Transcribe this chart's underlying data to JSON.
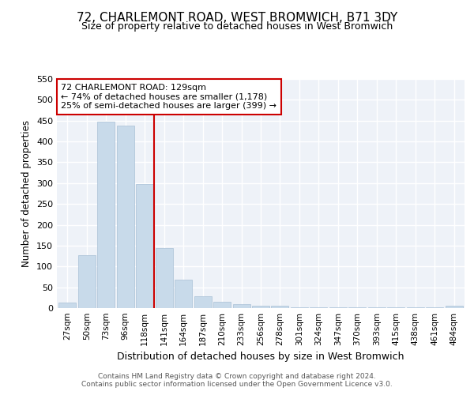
{
  "title": "72, CHARLEMONT ROAD, WEST BROMWICH, B71 3DY",
  "subtitle": "Size of property relative to detached houses in West Bromwich",
  "xlabel": "Distribution of detached houses by size in West Bromwich",
  "ylabel": "Number of detached properties",
  "bar_color": "#c8daea",
  "bar_edge_color": "#a8c0d6",
  "categories": [
    "27sqm",
    "50sqm",
    "73sqm",
    "96sqm",
    "118sqm",
    "141sqm",
    "164sqm",
    "187sqm",
    "210sqm",
    "233sqm",
    "256sqm",
    "278sqm",
    "301sqm",
    "324sqm",
    "347sqm",
    "370sqm",
    "393sqm",
    "415sqm",
    "438sqm",
    "461sqm",
    "484sqm"
  ],
  "values": [
    14,
    127,
    447,
    438,
    298,
    145,
    68,
    29,
    15,
    9,
    5,
    5,
    2,
    1,
    1,
    1,
    1,
    1,
    1,
    1,
    6
  ],
  "ylim": [
    0,
    550
  ],
  "yticks": [
    0,
    50,
    100,
    150,
    200,
    250,
    300,
    350,
    400,
    450,
    500,
    550
  ],
  "vline_x": 4.5,
  "vline_color": "#cc0000",
  "annotation_text": "72 CHARLEMONT ROAD: 129sqm\n← 74% of detached houses are smaller (1,178)\n25% of semi-detached houses are larger (399) →",
  "annotation_box_color": "#ffffff",
  "annotation_box_edge_color": "#cc0000",
  "footer1": "Contains HM Land Registry data © Crown copyright and database right 2024.",
  "footer2": "Contains public sector information licensed under the Open Government Licence v3.0."
}
